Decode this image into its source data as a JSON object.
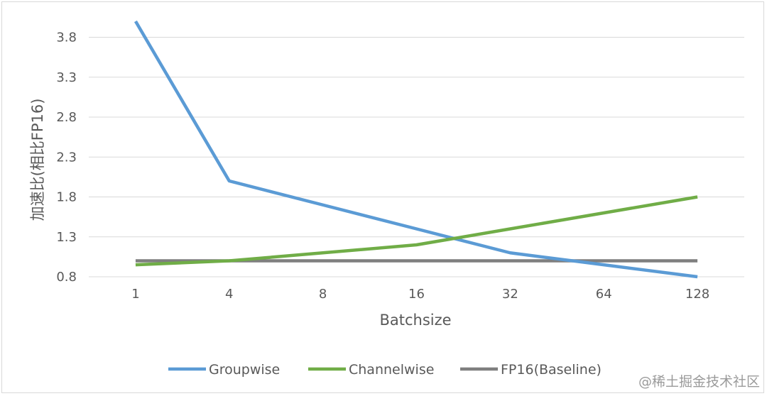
{
  "chart_data": {
    "type": "line",
    "title": "",
    "xlabel": "Batchsize",
    "ylabel": "加速比(相比FP16)",
    "categories": [
      "1",
      "4",
      "8",
      "16",
      "32",
      "64",
      "128"
    ],
    "ylim": [
      0.8,
      4.0
    ],
    "yticks": [
      "0.8",
      "1.3",
      "1.8",
      "2.3",
      "2.8",
      "3.3",
      "3.8"
    ],
    "grid": true,
    "legend_position": "bottom",
    "series": [
      {
        "name": "Groupwise",
        "color": "#5b9bd5",
        "values": [
          4.0,
          2.0,
          1.7,
          1.4,
          1.1,
          0.95,
          0.8
        ]
      },
      {
        "name": "Channelwise",
        "color": "#70ad47",
        "values": [
          0.95,
          1.0,
          1.1,
          1.2,
          1.4,
          1.6,
          1.8
        ]
      },
      {
        "name": "FP16(Baseline)",
        "color": "#7f7f7f",
        "values": [
          1.0,
          1.0,
          1.0,
          1.0,
          1.0,
          1.0,
          1.0
        ]
      }
    ]
  },
  "watermark": "@稀土掘金技术社区"
}
